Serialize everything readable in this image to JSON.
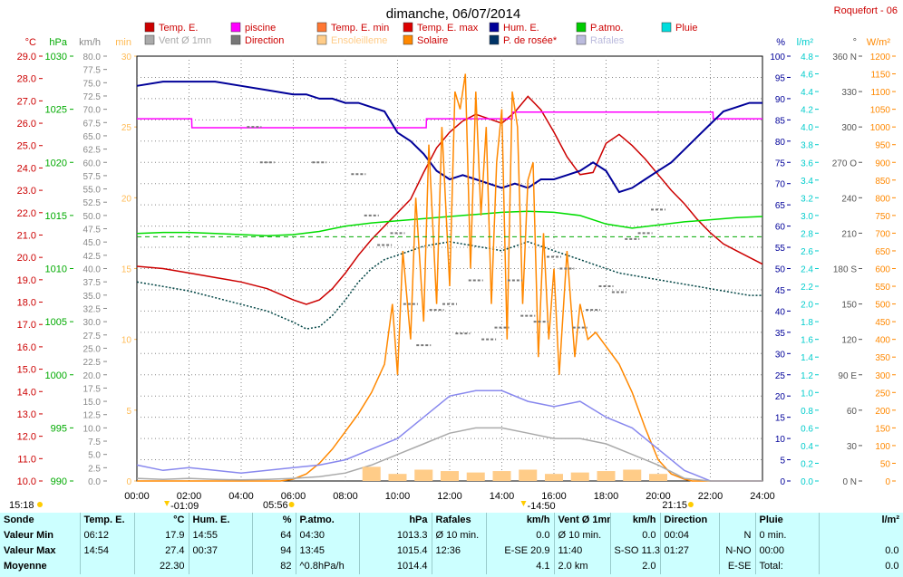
{
  "title": "dimanche, 06/07/2014",
  "station": "Roquefort - 06",
  "legend": [
    {
      "label": "Temp. E.",
      "color": "#cc0000",
      "dim": false
    },
    {
      "label": "piscine",
      "color": "#ff00ff",
      "dim": false
    },
    {
      "label": "Temp. E. min",
      "color": "#ff7733",
      "dim": false
    },
    {
      "label": "Temp. E. max",
      "color": "#dd0000",
      "dim": false
    },
    {
      "label": "Hum. E.",
      "color": "#000099",
      "dim": false
    },
    {
      "label": "P.atmo.",
      "color": "#00cc00",
      "dim": false
    },
    {
      "label": "Pluie",
      "color": "#00dddd",
      "dim": false
    },
    {
      "label": "Vent Ø 1mn",
      "color": "#aaaaaa",
      "dim": true
    },
    {
      "label": "Direction",
      "color": "#777777",
      "dim": false
    },
    {
      "label": "Ensoleilleme",
      "color": "#ffcc88",
      "dim": true
    },
    {
      "label": "Solaire",
      "color": "#ff8800",
      "dim": false
    },
    {
      "label": "P. de rosée*",
      "color": "#003366",
      "dim": false
    },
    {
      "label": "Rafales",
      "color": "#bbbbdd",
      "dim": true
    }
  ],
  "axes": {
    "temp": {
      "unit": "°C",
      "color": "#cc0000",
      "ticks": [
        "29.0",
        "28.0",
        "27.0",
        "26.0",
        "25.0",
        "24.0",
        "23.0",
        "22.0",
        "21.0",
        "20.0",
        "19.0",
        "18.0",
        "17.0",
        "16.0",
        "15.0",
        "14.0",
        "13.0",
        "12.0",
        "11.0",
        "10.0"
      ]
    },
    "pres": {
      "unit": "hPa",
      "color": "#00aa00",
      "ticks": [
        "1030",
        "1025",
        "1020",
        "1015",
        "1010",
        "1005",
        "1000",
        "995",
        "990"
      ]
    },
    "wind": {
      "unit": "km/h",
      "color": "#888888",
      "ticks": [
        "80.0",
        "77.5",
        "75.0",
        "72.5",
        "70.0",
        "67.5",
        "65.0",
        "62.5",
        "60.0",
        "57.5",
        "55.0",
        "52.5",
        "50.0",
        "47.5",
        "45.0",
        "42.5",
        "40.0",
        "37.5",
        "35.0",
        "32.5",
        "30.0",
        "27.5",
        "25.0",
        "22.5",
        "20.0",
        "17.5",
        "15.0",
        "12.5",
        "10.0",
        "7.5",
        "5.0",
        "2.5",
        "0.0"
      ]
    },
    "minutes": {
      "unit": "min",
      "color": "#ffbb55",
      "ticks": [
        "30",
        "25",
        "20",
        "15",
        "10",
        "5",
        "0"
      ]
    },
    "hum": {
      "unit": "%",
      "color": "#000099",
      "ticks": [
        "100",
        "95",
        "90",
        "85",
        "80",
        "75",
        "70",
        "65",
        "60",
        "55",
        "50",
        "45",
        "40",
        "35",
        "30",
        "25",
        "20",
        "15",
        "10",
        "5",
        "0"
      ]
    },
    "rain": {
      "unit": "l/m²",
      "color": "#00cccc",
      "ticks": [
        "4.8",
        "4.6",
        "4.4",
        "4.2",
        "4.0",
        "3.8",
        "3.6",
        "3.4",
        "3.2",
        "3.0",
        "2.8",
        "2.6",
        "2.4",
        "2.2",
        "2.0",
        "1.8",
        "1.6",
        "1.4",
        "1.2",
        "1.0",
        "0.8",
        "0.6",
        "0.4",
        "0.2",
        "0.0"
      ]
    },
    "dir": {
      "unit": "°",
      "color": "#555555",
      "ticks": [
        "360 N",
        "330",
        "300",
        "270 O",
        "240",
        "210",
        "180 S",
        "150",
        "120",
        "90 E",
        "60",
        "30",
        "0 N"
      ]
    },
    "solar": {
      "unit": "W/m²",
      "color": "#ff8800",
      "ticks": [
        "1200",
        "1150",
        "1100",
        "1050",
        "1000",
        "950",
        "900",
        "850",
        "800",
        "750",
        "700",
        "650",
        "600",
        "550",
        "500",
        "450",
        "400",
        "350",
        "300",
        "250",
        "200",
        "150",
        "100",
        "50",
        "0"
      ]
    },
    "time": {
      "ticks": [
        "00:00",
        "02:00",
        "04:00",
        "06:00",
        "08:00",
        "10:00",
        "12:00",
        "14:00",
        "16:00",
        "18:00",
        "20:00",
        "22:00",
        "24:00"
      ]
    }
  },
  "markers": {
    "row1": [
      "15:18",
      "05:56",
      "21:15"
    ],
    "row2": [
      "01:09",
      "14:50"
    ]
  },
  "chart_data": {
    "type": "line",
    "title": "dimanche, 06/07/2014",
    "x_unit": "hours",
    "xlim": [
      0,
      24
    ],
    "series": [
      {
        "name": "Temp. E.",
        "axis": "temp",
        "color": "#cc0000",
        "x": [
          0,
          1,
          2,
          3,
          4,
          5,
          6,
          6.5,
          7,
          7.5,
          8,
          8.5,
          9,
          9.5,
          10,
          10.5,
          11,
          11.5,
          12,
          12.5,
          13,
          13.5,
          14,
          14.5,
          15,
          15.5,
          16,
          16.5,
          17,
          17.5,
          18,
          18.5,
          19,
          19.5,
          20,
          20.5,
          21,
          21.5,
          22,
          22.5,
          23,
          23.5,
          24
        ],
        "y": [
          19.6,
          19.5,
          19.3,
          19.1,
          18.9,
          18.6,
          18.1,
          17.9,
          18.1,
          18.6,
          19.3,
          20.1,
          20.8,
          21.4,
          22.0,
          22.6,
          23.8,
          24.9,
          25.6,
          26.1,
          26.4,
          26.2,
          26.0,
          26.5,
          27.2,
          26.6,
          25.6,
          24.5,
          23.7,
          23.8,
          25.1,
          25.5,
          25.0,
          24.4,
          23.7,
          23.0,
          22.4,
          21.7,
          21.1,
          20.6,
          20.3,
          20.0,
          19.7
        ]
      },
      {
        "name": "piscine",
        "axis": "temp",
        "color": "#ff00ff",
        "x": [
          0,
          2.1,
          2.11,
          11.1,
          11.11,
          14.4,
          14.41,
          22.1,
          22.11,
          24
        ],
        "y": [
          26.2,
          26.2,
          25.8,
          25.8,
          26.2,
          26.2,
          26.5,
          26.5,
          26.2,
          26.2
        ]
      },
      {
        "name": "Hum. E.",
        "axis": "hum",
        "color": "#000099",
        "x": [
          0,
          1,
          2,
          3,
          4,
          5,
          6,
          6.5,
          7,
          7.5,
          8,
          8.5,
          9,
          9.5,
          10,
          10.5,
          11,
          11.5,
          12,
          12.5,
          13,
          13.5,
          14,
          14.5,
          15,
          15.5,
          16,
          16.5,
          17,
          17.5,
          18,
          18.5,
          19,
          19.5,
          20,
          20.5,
          21,
          21.5,
          22,
          22.5,
          23,
          23.5,
          24
        ],
        "y": [
          93,
          94,
          94,
          94,
          93,
          92,
          91,
          91,
          90,
          90,
          89,
          89,
          88,
          87,
          82,
          80,
          77,
          73,
          71,
          72,
          71,
          70,
          69,
          70,
          69,
          71,
          71,
          72,
          73,
          75,
          73,
          68,
          69,
          71,
          73,
          75,
          78,
          81,
          84,
          87,
          88,
          89,
          89
        ]
      },
      {
        "name": "P. de rosée*",
        "axis": "temp",
        "color": "#004444",
        "x": [
          0,
          1,
          2,
          3,
          4,
          5,
          6,
          6.5,
          7,
          7.5,
          8,
          8.5,
          9,
          9.5,
          10,
          10.5,
          11,
          11.5,
          12,
          12.5,
          13,
          13.5,
          14,
          14.5,
          15,
          15.5,
          16,
          16.5,
          17,
          17.5,
          18,
          18.5,
          19,
          19.5,
          20,
          20.5,
          21,
          21.5,
          22,
          22.5,
          23,
          23.5,
          24
        ],
        "y": [
          18.9,
          18.7,
          18.5,
          18.2,
          17.9,
          17.6,
          17.1,
          16.8,
          16.9,
          17.4,
          18.1,
          18.9,
          19.5,
          19.9,
          20.1,
          20.3,
          20.5,
          20.6,
          20.7,
          20.6,
          20.5,
          20.4,
          20.3,
          20.5,
          20.7,
          20.5,
          20.3,
          20.1,
          19.9,
          19.7,
          19.5,
          19.3,
          19.2,
          19.1,
          19.0,
          18.9,
          18.8,
          18.7,
          18.6,
          18.5,
          18.4,
          18.3,
          18.3
        ]
      },
      {
        "name": "P.atmo.",
        "axis": "pres",
        "color": "#00dd00",
        "x": [
          0,
          1,
          2,
          3,
          4,
          5,
          6,
          7,
          8,
          9,
          10,
          11,
          12,
          13,
          14,
          15,
          16,
          17,
          18,
          19,
          20,
          21,
          22,
          23,
          24
        ],
        "y": [
          1013.3,
          1013.4,
          1013.4,
          1013.3,
          1013.2,
          1013.1,
          1013.2,
          1013.5,
          1014.0,
          1014.3,
          1014.5,
          1014.7,
          1014.9,
          1015.1,
          1015.3,
          1015.4,
          1015.3,
          1015.0,
          1014.2,
          1013.8,
          1014.1,
          1014.4,
          1014.6,
          1014.8,
          1014.9
        ]
      },
      {
        "name": "Solaire",
        "axis": "solar",
        "color": "#ff8800",
        "x": [
          0,
          5.5,
          6,
          6.5,
          7,
          7.5,
          8,
          8.5,
          9,
          9.5,
          9.8,
          10,
          10.2,
          10.5,
          10.7,
          11,
          11.2,
          11.5,
          11.7,
          12,
          12.2,
          12.4,
          12.6,
          12.8,
          13,
          13.2,
          13.4,
          13.6,
          13.8,
          14,
          14.2,
          14.4,
          14.6,
          14.8,
          15,
          15.2,
          15.4,
          15.6,
          15.8,
          16,
          16.2,
          16.5,
          16.8,
          17,
          17.3,
          17.6,
          18,
          18.5,
          19,
          19.5,
          20,
          20.5,
          21,
          21.3,
          24
        ],
        "y": [
          0,
          0,
          5,
          20,
          50,
          90,
          140,
          190,
          250,
          330,
          500,
          300,
          650,
          400,
          800,
          450,
          950,
          500,
          1000,
          550,
          1100,
          1050,
          1150,
          600,
          1100,
          750,
          1000,
          500,
          900,
          1050,
          400,
          1100,
          1000,
          500,
          850,
          900,
          350,
          700,
          400,
          600,
          300,
          650,
          350,
          500,
          400,
          420,
          380,
          330,
          250,
          150,
          60,
          20,
          5,
          0,
          0
        ]
      },
      {
        "name": "Rafales",
        "axis": "wind",
        "color": "#8888ee",
        "x": [
          0,
          1,
          2,
          3,
          4,
          5,
          6,
          7,
          8,
          9,
          10,
          11,
          12,
          13,
          14,
          15,
          16,
          17,
          18,
          19,
          20,
          21,
          22,
          23,
          24
        ],
        "y": [
          3,
          2,
          2.5,
          2,
          1.5,
          2,
          2.5,
          3,
          4,
          6,
          8,
          12,
          16,
          17,
          17,
          15,
          14,
          15,
          12,
          10,
          6,
          2,
          0,
          0,
          0
        ]
      },
      {
        "name": "Vent Ø 1mn",
        "axis": "wind",
        "color": "#aaaaaa",
        "x": [
          0,
          1,
          2,
          3,
          4,
          5,
          6,
          7,
          8,
          9,
          10,
          11,
          12,
          13,
          14,
          15,
          16,
          17,
          18,
          19,
          20,
          21,
          22,
          23,
          24
        ],
        "y": [
          0.5,
          0.3,
          0.5,
          0.3,
          0.2,
          0.3,
          0.5,
          0.8,
          1.5,
          3,
          5,
          7,
          9,
          10,
          10,
          9,
          8,
          8,
          7,
          5,
          3,
          0.5,
          0,
          0,
          0
        ]
      },
      {
        "name": "Direction",
        "axis": "dir",
        "color": "#777777",
        "x": [
          4.5,
          5,
          7,
          8.5,
          9,
          9.5,
          10,
          10.5,
          11,
          11.5,
          12,
          12.5,
          13,
          13.5,
          14,
          14.5,
          15,
          15.5,
          16,
          16.5,
          17,
          17.5,
          18,
          18.5,
          19,
          19.5,
          20
        ],
        "y": [
          300,
          270,
          270,
          260,
          225,
          200,
          210,
          150,
          115,
          145,
          150,
          125,
          170,
          120,
          130,
          170,
          140,
          135,
          190,
          180,
          130,
          145,
          165,
          160,
          205,
          210,
          230
        ]
      },
      {
        "name": "Ensoleilleme",
        "axis": "minutes",
        "color": "#ffcc88",
        "x": [
          9,
          10,
          11,
          12,
          13,
          14,
          15,
          16,
          17,
          18,
          19,
          20
        ],
        "y": [
          1,
          0.5,
          0.8,
          0.7,
          0.6,
          0.7,
          0.8,
          0.5,
          0.6,
          0.7,
          0.8,
          0.5
        ]
      }
    ]
  },
  "summary": {
    "headers": [
      "Sonde",
      "Temp. E.",
      "°C",
      "Hum. E.",
      "%",
      "P.atmo.",
      "hPa",
      "Rafales",
      "km/h",
      "Vent Ø 1mn",
      "km/h",
      "Direction",
      "",
      "Pluie",
      "l/m²"
    ],
    "rows": [
      {
        "label": "Valeur Min",
        "cells": [
          "06:12",
          "17.9",
          "14:55",
          "64",
          "04:30",
          "1013.3",
          "Ø 10 min.",
          "0.0",
          "Ø 10 min.",
          "0.0",
          "00:04",
          "N",
          "0 min.",
          ""
        ]
      },
      {
        "label": "Valeur Max",
        "cells": [
          "14:54",
          "27.4",
          "00:37",
          "94",
          "13:45",
          "1015.4",
          "12:36",
          "E-SE 20.9",
          "11:40",
          "S-SO 11.3",
          "01:27",
          "N-NO",
          "00:00",
          "0.0"
        ]
      },
      {
        "label": "Moyenne",
        "cells": [
          "",
          "22.30",
          "",
          "82",
          "^0.8hPa/h",
          "1014.4",
          "",
          "4.1",
          "2.0 km",
          "2.0",
          "",
          "E-SE",
          "Total:",
          "0.0"
        ]
      }
    ]
  }
}
